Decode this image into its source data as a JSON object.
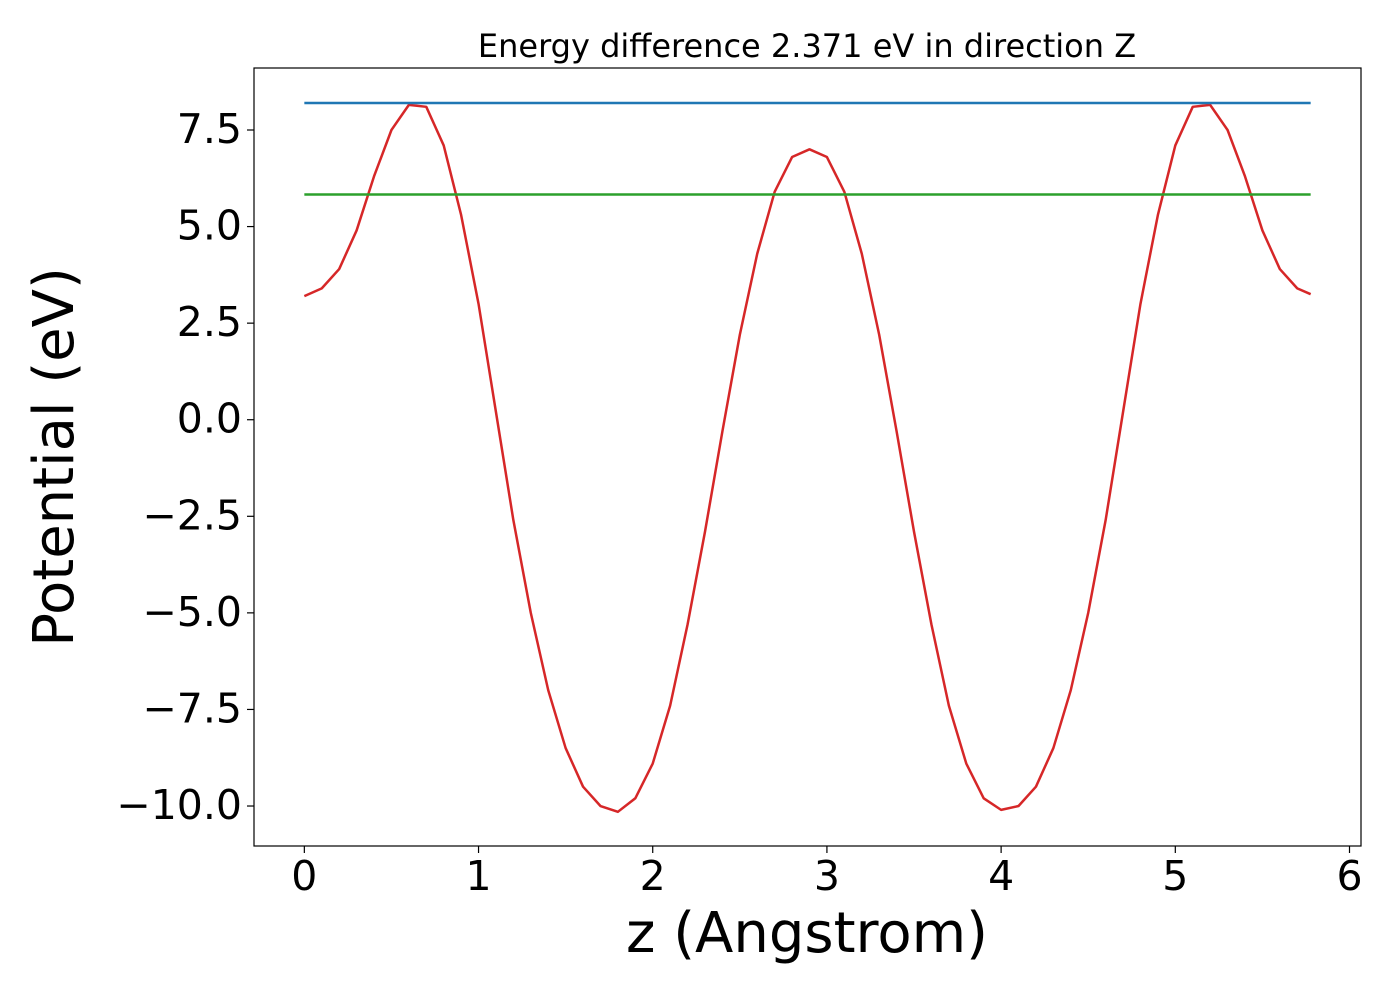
{
  "chart_data": {
    "type": "line",
    "title": "Energy difference 2.371 eV in direction Z",
    "xlabel": "z (Angstrom)",
    "ylabel": "Potential (eV)",
    "series": [
      {
        "color": "#d62728",
        "x": [
          0,
          0.1,
          0.2,
          0.3,
          0.4,
          0.5,
          0.6,
          0.7,
          0.8,
          0.9,
          1.0,
          1.1,
          1.2,
          1.3,
          1.4,
          1.5,
          1.6,
          1.7,
          1.8,
          1.9,
          2.0,
          2.1,
          2.2,
          2.3,
          2.4,
          2.5,
          2.6,
          2.7,
          2.8,
          2.9,
          3.0,
          3.1,
          3.2,
          3.3,
          3.4,
          3.5,
          3.6,
          3.7,
          3.8,
          3.9,
          4.0,
          4.1,
          4.2,
          4.3,
          4.4,
          4.5,
          4.6,
          4.7,
          4.8,
          4.9,
          5.0,
          5.1,
          5.2,
          5.3,
          5.4,
          5.5,
          5.6,
          5.7,
          5.777
        ],
        "values": [
          3.2,
          3.4,
          3.9,
          4.9,
          6.3,
          7.5,
          8.15,
          8.1,
          7.1,
          5.3,
          3.0,
          0.2,
          -2.6,
          -5.0,
          -7.0,
          -8.5,
          -9.5,
          -10.0,
          -10.15,
          -9.8,
          -8.9,
          -7.4,
          -5.3,
          -2.9,
          -0.3,
          2.2,
          4.3,
          5.9,
          6.8,
          7.0,
          6.8,
          5.9,
          4.3,
          2.2,
          -0.3,
          -2.9,
          -5.3,
          -7.4,
          -8.9,
          -9.8,
          -10.1,
          -10.0,
          -9.5,
          -8.5,
          -7.0,
          -5.0,
          -2.6,
          0.2,
          3.0,
          5.3,
          7.1,
          8.1,
          8.15,
          7.5,
          6.3,
          4.9,
          3.9,
          3.4,
          3.25
        ]
      },
      {
        "color": "#1f77b4",
        "x": [
          0,
          5.777
        ],
        "values": [
          8.2,
          8.2
        ]
      },
      {
        "color": "#2ca02c",
        "x": [
          0,
          5.777
        ],
        "values": [
          5.829,
          5.829
        ]
      }
    ],
    "xlim": [
      -0.289,
      6.066
    ],
    "ylim": [
      -11.035,
      9.105
    ],
    "xticks": [
      0,
      1,
      2,
      3,
      4,
      5,
      6
    ],
    "yticks": [
      7.5,
      {
        "value": 5,
        "label": "5.0"
      },
      2.5,
      {
        "value": 0,
        "label": "0.0"
      },
      {
        "value": -2.5,
        "label": "−2.5"
      },
      {
        "value": -5,
        "label": "−5.0"
      },
      {
        "value": -7.5,
        "label": "−7.5"
      },
      {
        "value": -10,
        "label": "−10.0"
      }
    ],
    "grid": false
  }
}
